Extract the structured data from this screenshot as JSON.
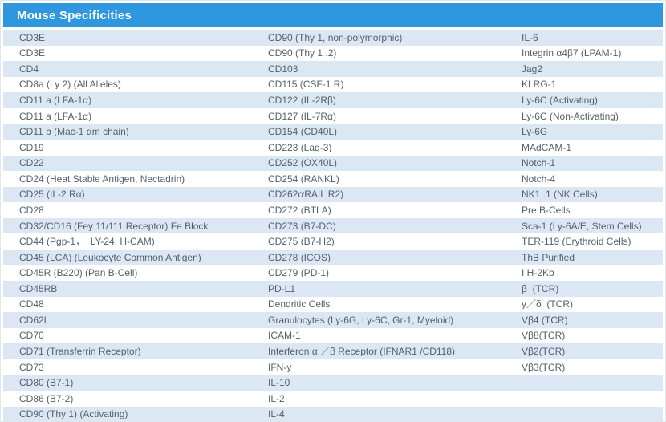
{
  "colors": {
    "header_bg": "#2e97dd",
    "header_text": "#ffffff",
    "row_alt_bg": "#dbe8f4",
    "row_bg": "#ffffff",
    "row_text": "#55606a"
  },
  "header": {
    "title": "Mouse Specificities"
  },
  "table": {
    "columns": 3,
    "rows": [
      [
        "CD3E",
        "CD90 (Thy 1, non-polymorphic)",
        "IL-6"
      ],
      [
        "CD3E",
        "CD90 (Thy 1 .2)",
        "Integrin α4β7 (LPAM-1)"
      ],
      [
        "CD4",
        "CD103",
        "Jag2"
      ],
      [
        "CD8a (Ly 2) (All Alleles)",
        "CD115 (CSF-1 R)",
        "KLRG-1"
      ],
      [
        "CD11 a (LFA-1α)",
        "CD122 (IL-2Rβ)",
        "Ly-6C (Activating)"
      ],
      [
        "CD11 a (LFA-1α)",
        "CD127 (IL-7Rα)",
        "Ly-6C (Non-Activating)"
      ],
      [
        "CD11 b (Mac-1 αm chain)",
        "CD154 (CD40L)",
        "Ly-6G"
      ],
      [
        "CD19",
        "CD223 (Lag-3)",
        "MAdCAM-1"
      ],
      [
        "CD22",
        "CD252 (OX40L)",
        "Notch-1"
      ],
      [
        "CD24 (Heat Stable Antigen, Nectadrin)",
        "CD254 (RANKL)",
        "Notch-4"
      ],
      [
        "CD25 (IL-2 Rα)",
        "CD262ơRAIL R2)",
        "NK1 .1 (NK Cells)"
      ],
      [
        "CD28",
        "CD272 (BTLA)",
        "Pre B-Cells"
      ],
      [
        "CD32/CD16 (Fey 11/111 Receptor) Fe Block",
        "CD273 (B7-DC)",
        "Sca-1 (Ly-6A/E, Stem Cells)"
      ],
      [
        "CD44 (Pgp-1，  LY-24, H-CAM)",
        "CD275 (B7-H2)",
        "TER-119 (Erythroid Cells)"
      ],
      [
        "CD45 (LCA) (Leukocyte Common Antigen)",
        "CD278 (ICOS)",
        "ThB Purified"
      ],
      [
        "CD45R (B220) (Pan B-Cell)",
        "CD279 (PD-1)",
        "I H-2Kb"
      ],
      [
        "CD45RB",
        "PD-L1",
        "β  (TCR)"
      ],
      [
        "CD48",
        "Dendritic Cells",
        "y／δ  (TCR)"
      ],
      [
        "CD62L",
        "Granulocytes (Ly-6G, Ly-6C, Gr-1, Myeloid)",
        "Vβ4 (TCR)"
      ],
      [
        "CD70",
        "ICAM-1",
        "Vβ8(TCR)"
      ],
      [
        "CD71 (Transferrin Receptor)",
        "Interferon α ／β Receptor (IFNAR1 /CD118)",
        "Vβ2(TCR)"
      ],
      [
        "CD73",
        "IFN-y",
        "Vβ3(TCR)"
      ],
      [
        "CD80 (B7-1)",
        "IL-10",
        ""
      ],
      [
        "CD86 (B7-2)",
        "IL-2",
        ""
      ],
      [
        "CD90 (Thy 1) (Activating)",
        "IL-4",
        ""
      ]
    ]
  }
}
